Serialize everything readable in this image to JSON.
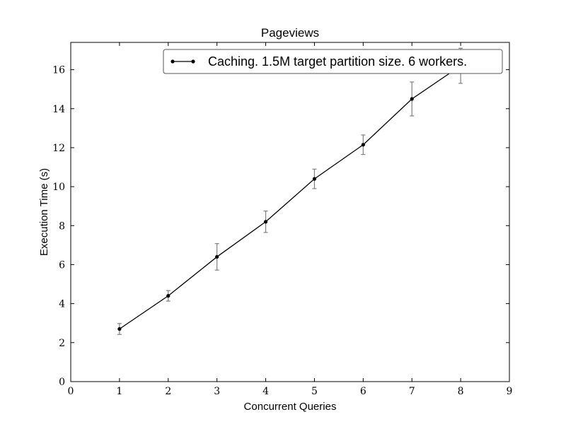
{
  "chart_data": {
    "type": "line",
    "title": "Pageviews",
    "xlabel": "Concurrent Queries",
    "ylabel": "Execution Time (s)",
    "xlim": [
      0,
      9
    ],
    "ylim": [
      0,
      17.4
    ],
    "xticks": [
      0,
      1,
      2,
      3,
      4,
      5,
      6,
      7,
      8,
      9
    ],
    "yticks": [
      0,
      2,
      4,
      6,
      8,
      10,
      12,
      14,
      16
    ],
    "grid": false,
    "legend_position": "top-right",
    "series": [
      {
        "name": "Caching. 1.5M target partition size. 6 workers.",
        "color": "#000000",
        "marker": "dot",
        "x": [
          1,
          2,
          3,
          4,
          5,
          6,
          7,
          8
        ],
        "y": [
          2.7,
          4.4,
          6.4,
          8.2,
          10.4,
          12.15,
          14.5,
          16.2
        ],
        "error": [
          0.28,
          0.27,
          0.68,
          0.55,
          0.5,
          0.5,
          0.87,
          0.9
        ]
      }
    ],
    "errorbar_color": "#7f7f7f"
  }
}
